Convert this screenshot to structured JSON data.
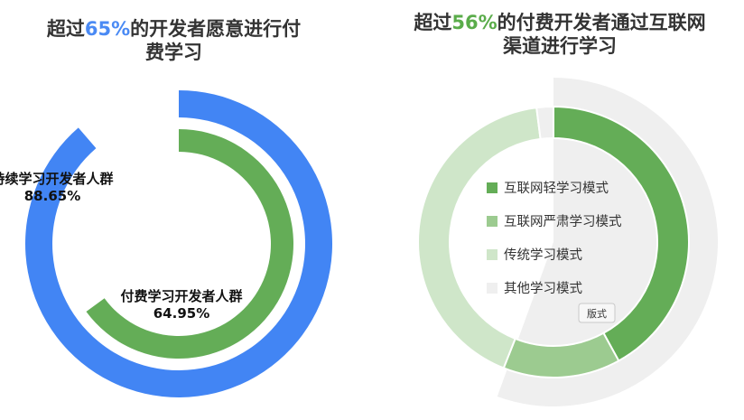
{
  "left_title": {
    "prefix": "超过",
    "highlight": "65%",
    "suffix_line1": "的开发者愿意进行付",
    "line2": "费学习"
  },
  "right_title": {
    "prefix": "超过",
    "highlight": "56%",
    "suffix_line1": "的付费开发者通过互联网",
    "line2": "渠道进行学习"
  },
  "colors": {
    "blue": "#4285f4",
    "green": "#64ad57",
    "light_green": "#9ccb90",
    "pale_green": "#cfe6c9",
    "gray": "#efefef",
    "blue_text": "#4a8af4",
    "green_text": "#5aac4a"
  },
  "tag_label": "版式",
  "chart_data": [
    {
      "type": "pie",
      "variant": "concentric-rings",
      "series": [
        {
          "name": "持续学习开发者人群",
          "value": 88.65,
          "value_label": "88.65%",
          "color": "#4285f4"
        },
        {
          "name": "付费学习开发者人群",
          "value": 64.95,
          "value_label": "64.95%",
          "color": "#64ad57"
        }
      ]
    },
    {
      "type": "pie",
      "variant": "donut",
      "legend": "center",
      "series": [
        {
          "name": "互联网轻学习模式",
          "value": 42,
          "color": "#64ad57"
        },
        {
          "name": "互联网严肃学习模式",
          "value": 14,
          "color": "#9ccb90"
        },
        {
          "name": "传统学习模式",
          "value": 42,
          "color": "#cfe6c9"
        },
        {
          "name": "其他学习模式",
          "value": 2,
          "color": "#efefef"
        }
      ]
    }
  ]
}
